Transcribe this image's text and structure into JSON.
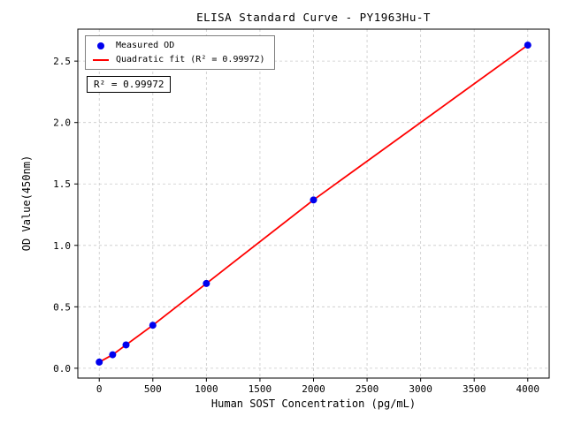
{
  "chart_data": {
    "type": "scatter",
    "title": "ELISA Standard Curve - PY1963Hu-T",
    "xlabel": "Human SOST Concentration (pg/mL)",
    "ylabel": "OD Value(450nm)",
    "x": [
      0,
      125,
      250,
      500,
      1000,
      2000,
      4000
    ],
    "y": [
      0.05,
      0.11,
      0.19,
      0.35,
      0.69,
      1.37,
      2.63
    ],
    "fit": {
      "type": "quadratic",
      "r_squared": 0.99972
    },
    "xlim": [
      -200,
      4200
    ],
    "ylim": [
      -0.08,
      2.76
    ],
    "xticks": [
      0,
      500,
      1000,
      1500,
      2000,
      2500,
      3000,
      3500,
      4000
    ],
    "xtick_labels": [
      "0",
      "500",
      "1000",
      "1500",
      "2000",
      "2500",
      "3000",
      "3500",
      "4000"
    ],
    "yticks": [
      0,
      0.5,
      1,
      1.5,
      2,
      2.5
    ],
    "ytick_labels": [
      "0.0",
      "0.5",
      "1.0",
      "1.5",
      "2.0",
      "2.5"
    ],
    "grid": true,
    "legend": {
      "position": "upper-left",
      "items": [
        {
          "label": "Measured OD",
          "marker": "dot",
          "color": "#0000ee"
        },
        {
          "label": "Quadratic fit (R² = 0.99972)",
          "marker": "line",
          "color": "#ff0000"
        }
      ]
    },
    "annotation": "R² = 0.99972",
    "colors": {
      "points": "#0000ee",
      "fit_line": "#ff0000",
      "grid": "#c9c9c9",
      "axis": "#000000"
    }
  }
}
